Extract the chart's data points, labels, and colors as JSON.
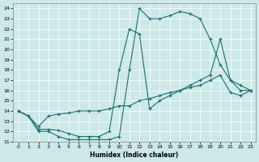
{
  "xlabel": "Humidex (Indice chaleur)",
  "xlim": [
    -0.5,
    23.5
  ],
  "ylim": [
    11,
    24.5
  ],
  "yticks": [
    11,
    12,
    13,
    14,
    15,
    16,
    17,
    18,
    19,
    20,
    21,
    22,
    23,
    24
  ],
  "xticks": [
    0,
    1,
    2,
    3,
    4,
    5,
    6,
    7,
    8,
    9,
    10,
    11,
    12,
    13,
    14,
    15,
    16,
    17,
    18,
    19,
    20,
    21,
    22,
    23
  ],
  "bg_color": "#cde8e8",
  "grid_color": "#ffffff",
  "line_color": "#1a7070",
  "line1_x": [
    0,
    1,
    2,
    3,
    4,
    5,
    6,
    7,
    8,
    9,
    10,
    11,
    12,
    13,
    14,
    15,
    16,
    17,
    18,
    19,
    20,
    21,
    22,
    23
  ],
  "line1_y": [
    14,
    13.5,
    12,
    12,
    11.5,
    11.2,
    11.2,
    11.2,
    11.2,
    11.2,
    11.5,
    18.0,
    24.0,
    23.0,
    23.0,
    23.3,
    23.7,
    23.5,
    23.0,
    21.0,
    18.5,
    17.0,
    16.0,
    16.0
  ],
  "line2_x": [
    0,
    1,
    2,
    3,
    4,
    5,
    6,
    7,
    8,
    9,
    10,
    11,
    12,
    13,
    14,
    15,
    16,
    17,
    18,
    19,
    20,
    21,
    22,
    23
  ],
  "line2_y": [
    14,
    13.5,
    12.2,
    12.2,
    12.1,
    11.8,
    11.5,
    11.5,
    11.5,
    12.0,
    18.0,
    22.0,
    21.5,
    14.2,
    15.0,
    15.5,
    16.0,
    16.5,
    17.0,
    17.5,
    21.0,
    17.0,
    16.5,
    16.0
  ],
  "line3_x": [
    0,
    1,
    2,
    3,
    4,
    5,
    6,
    7,
    8,
    9,
    10,
    11,
    12,
    13,
    14,
    15,
    16,
    17,
    18,
    19,
    20,
    21,
    22,
    23
  ],
  "line3_y": [
    14,
    13.5,
    12.5,
    13.5,
    13.7,
    13.8,
    14.0,
    14.0,
    14.0,
    14.2,
    14.5,
    14.5,
    15.0,
    15.2,
    15.5,
    15.8,
    16.0,
    16.3,
    16.5,
    17.0,
    17.5,
    15.8,
    15.5,
    16.0
  ]
}
